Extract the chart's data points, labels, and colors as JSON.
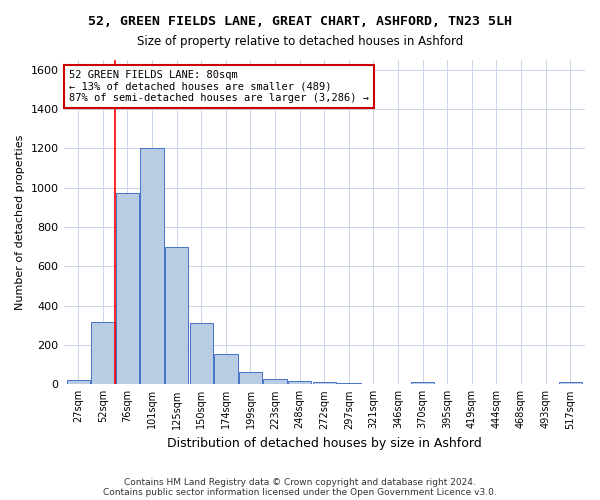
{
  "title_line1": "52, GREEN FIELDS LANE, GREAT CHART, ASHFORD, TN23 5LH",
  "title_line2": "Size of property relative to detached houses in Ashford",
  "xlabel": "Distribution of detached houses by size in Ashford",
  "ylabel": "Number of detached properties",
  "categories": [
    "27sqm",
    "52sqm",
    "76sqm",
    "101sqm",
    "125sqm",
    "150sqm",
    "174sqm",
    "199sqm",
    "223sqm",
    "248sqm",
    "272sqm",
    "297sqm",
    "321sqm",
    "346sqm",
    "370sqm",
    "395sqm",
    "419sqm",
    "444sqm",
    "468sqm",
    "493sqm",
    "517sqm"
  ],
  "values": [
    20,
    315,
    975,
    1200,
    700,
    310,
    155,
    65,
    25,
    15,
    10,
    5,
    3,
    2,
    10,
    2,
    2,
    2,
    1,
    2,
    10
  ],
  "bar_color": "#b8cce4",
  "bar_edge_color": "#4472c4",
  "red_line_x": 1.5,
  "annotation_text": "52 GREEN FIELDS LANE: 80sqm\n← 13% of detached houses are smaller (489)\n87% of semi-detached houses are larger (3,286) →",
  "annotation_box_color": "#ffffff",
  "annotation_box_edge": "#cc0000",
  "ylim": [
    0,
    1650
  ],
  "yticks": [
    0,
    200,
    400,
    600,
    800,
    1000,
    1200,
    1400,
    1600
  ],
  "background_color": "#ffffff",
  "grid_color": "#c8d4e8",
  "footer": "Contains HM Land Registry data © Crown copyright and database right 2024.\nContains public sector information licensed under the Open Government Licence v3.0."
}
